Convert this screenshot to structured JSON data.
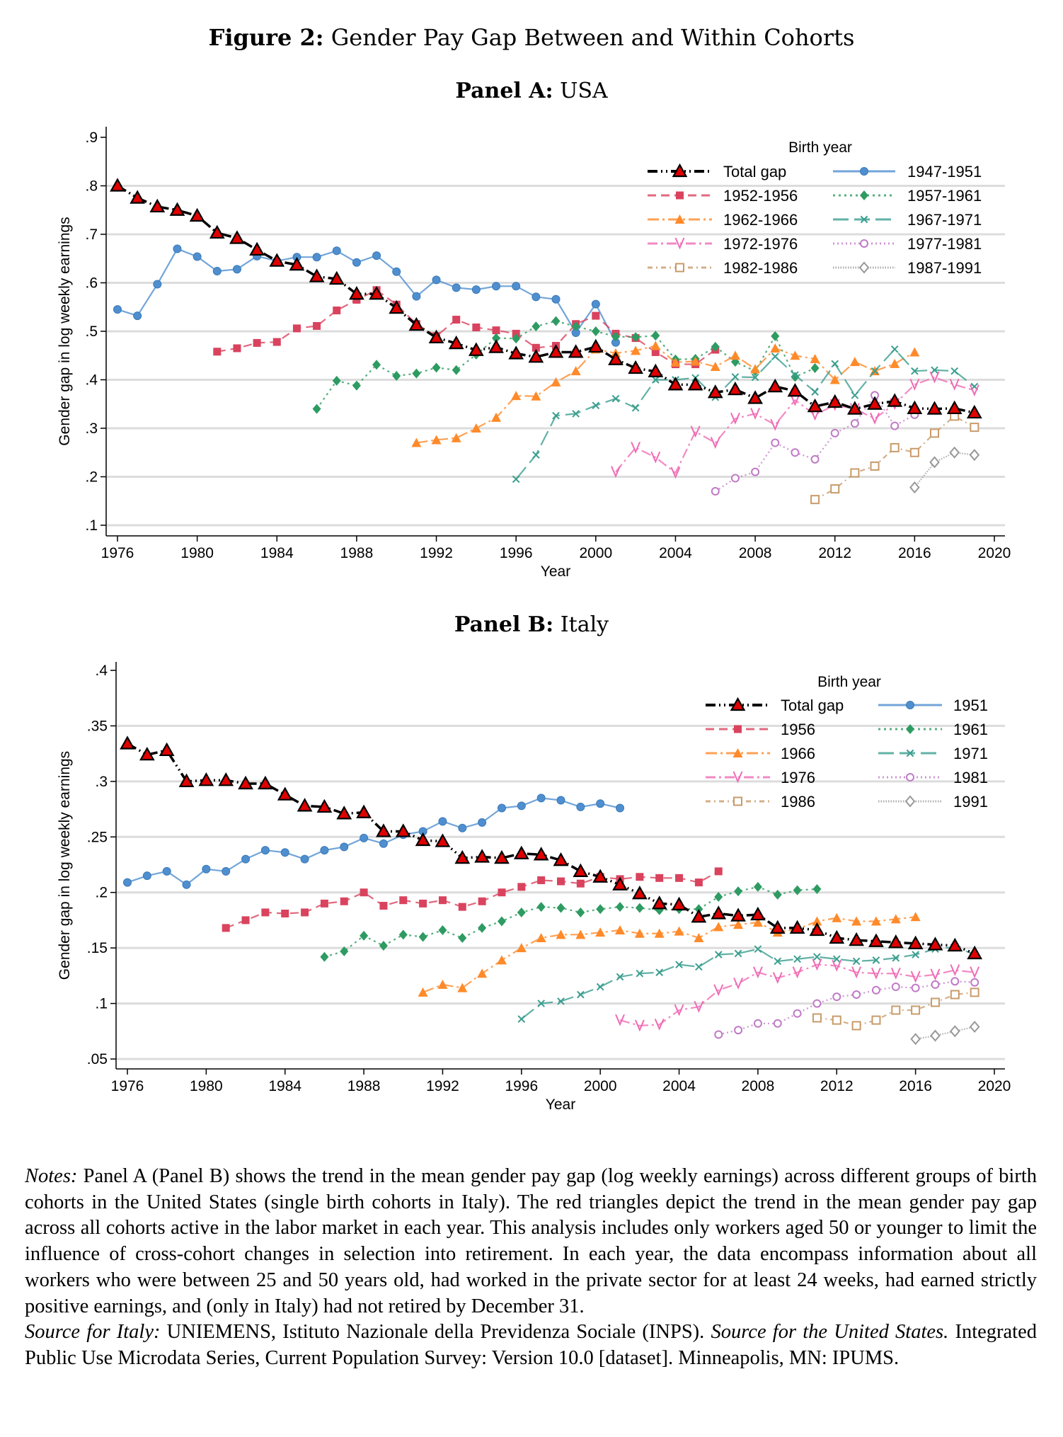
{
  "figure": {
    "label": "Figure 2:",
    "title": "Gender Pay Gap Between and Within Cohorts"
  },
  "panels": [
    {
      "label": "Panel A:",
      "title": "USA"
    },
    {
      "label": "Panel B:",
      "title": "Italy"
    }
  ],
  "notes": {
    "label": "Notes:",
    "body": " Panel A (Panel B) shows the trend in the mean gender pay gap (log weekly earnings) across different groups of birth cohorts in the United States (single birth cohorts in Italy). The red triangles depict the trend in the mean gender pay gap across all cohorts active in the labor market in each year. This analysis includes only workers aged 50 or younger to limit the influence of cross-cohort changes in selection into retirement. In each year, the data encompass information about all workers who were between 25 and 50 years old, had worked in the private sector for at least 24 weeks, had earned strictly positive earnings, and (only in Italy) had not retired by December 31.",
    "source_italy_label": "Source for Italy:",
    "source_italy": " UNIEMENS, Istituto Nazionale della Previdenza Sociale (INPS). ",
    "source_us_label": "Source for the United States.",
    "source_us": " Integrated Public Use Microdata Series, Current Population Survey: Version 10.0 [dataset]. Minneapolis, MN: IPUMS."
  },
  "chart_data": [
    {
      "type": "line",
      "title": "Panel A: USA",
      "xlabel": "Year",
      "ylabel": "Gender gap in log weekly earnings",
      "xlim": [
        1976,
        2020
      ],
      "xticks": [
        1976,
        1980,
        1984,
        1988,
        1992,
        1996,
        2000,
        2004,
        2008,
        2012,
        2016,
        2020
      ],
      "ylim": [
        0.1,
        0.9
      ],
      "yticks": [
        0.1,
        0.2,
        0.3,
        0.4,
        0.5,
        0.6,
        0.7,
        0.8,
        0.9
      ],
      "ytick_labels": [
        ".1",
        ".2",
        ".3",
        ".4",
        ".5",
        ".6",
        ".7",
        ".8",
        ".9"
      ],
      "grid": true,
      "legend_title": "Birth year",
      "legend_placement": "top-right",
      "series": [
        {
          "name": "Total gap",
          "color": "#000000",
          "marker": "filled-triangle-red",
          "start": 1976,
          "values": [
            0.8,
            0.775,
            0.757,
            0.75,
            0.738,
            0.703,
            0.692,
            0.668,
            0.645,
            0.637,
            0.613,
            0.608,
            0.577,
            0.577,
            0.548,
            0.513,
            0.487,
            0.475,
            0.461,
            0.467,
            0.454,
            0.447,
            0.457,
            0.457,
            0.468,
            0.442,
            0.424,
            0.417,
            0.39,
            0.39,
            0.374,
            0.38,
            0.362,
            0.386,
            0.377,
            0.345,
            0.354,
            0.34,
            0.35,
            0.356,
            0.341,
            0.34,
            0.341,
            0.332
          ]
        },
        {
          "name": "1947-1951",
          "color": "#4f8fcf",
          "marker": "circle",
          "start": 1976,
          "values": [
            0.545,
            0.532,
            0.597,
            0.67,
            0.654,
            0.624,
            0.628,
            0.655,
            0.645,
            0.653,
            0.653,
            0.666,
            0.642,
            0.656,
            0.623,
            0.572,
            0.606,
            0.59,
            0.586,
            0.593,
            0.593,
            0.571,
            0.566,
            0.497,
            0.556,
            0.477
          ]
        },
        {
          "name": "1952-1956",
          "color": "#d9435e",
          "marker": "square",
          "start": 1981,
          "values": [
            0.458,
            0.465,
            0.476,
            0.478,
            0.506,
            0.511,
            0.543,
            0.565,
            0.585,
            0.555,
            0.515,
            0.49,
            0.524,
            0.508,
            0.502,
            0.495,
            0.466,
            0.47,
            0.515,
            0.532,
            0.495,
            0.486,
            0.457,
            0.432,
            0.432,
            0.462
          ]
        },
        {
          "name": "1957-1961",
          "color": "#2e9b62",
          "marker": "diamond",
          "start": 1986,
          "values": [
            0.34,
            0.398,
            0.388,
            0.431,
            0.408,
            0.413,
            0.425,
            0.42,
            0.452,
            0.486,
            0.485,
            0.51,
            0.521,
            0.51,
            0.5,
            0.489,
            0.488,
            0.491,
            0.442,
            0.443,
            0.468,
            0.437,
            0.418,
            0.49,
            0.406,
            0.424
          ]
        },
        {
          "name": "1962-1966",
          "color": "#ff8a2a",
          "marker": "triangle",
          "start": 1991,
          "values": [
            0.27,
            0.276,
            0.28,
            0.3,
            0.322,
            0.367,
            0.366,
            0.395,
            0.418,
            0.463,
            0.455,
            0.46,
            0.47,
            0.436,
            0.438,
            0.427,
            0.45,
            0.422,
            0.465,
            0.45,
            0.443,
            0.4,
            0.437,
            0.418,
            0.433,
            0.457
          ]
        },
        {
          "name": "1967-1971",
          "color": "#3a9e8f",
          "marker": "x",
          "start": 1996,
          "values": [
            0.195,
            0.245,
            0.326,
            0.33,
            0.347,
            0.361,
            0.342,
            0.4,
            0.4,
            0.404,
            0.364,
            0.406,
            0.405,
            0.448,
            0.41,
            0.375,
            0.433,
            0.368,
            0.418,
            0.463,
            0.418,
            0.42,
            0.418,
            0.386
          ]
        },
        {
          "name": "1972-1976",
          "color": "#f06bb5",
          "marker": "v",
          "start": 2001,
          "values": [
            0.21,
            0.26,
            0.24,
            0.208,
            0.293,
            0.27,
            0.32,
            0.33,
            0.307,
            0.358,
            0.328,
            0.348,
            0.34,
            0.32,
            0.35,
            0.39,
            0.405,
            0.39,
            0.378
          ]
        },
        {
          "name": "1977-1981",
          "color": "#c07ac6",
          "marker": "hollow-circle",
          "start": 2006,
          "values": [
            0.17,
            0.197,
            0.21,
            0.27,
            0.25,
            0.236,
            0.29,
            0.31,
            0.368,
            0.305,
            0.328
          ]
        },
        {
          "name": "1982-1986",
          "color": "#c89b6a",
          "marker": "hollow-square",
          "start": 2011,
          "values": [
            0.153,
            0.175,
            0.208,
            0.222,
            0.26,
            0.25,
            0.29,
            0.325,
            0.302
          ]
        },
        {
          "name": "1987-1991",
          "color": "#999999",
          "marker": "hollow-diamond",
          "start": 2016,
          "values": [
            0.178,
            0.23,
            0.25,
            0.245
          ]
        }
      ]
    },
    {
      "type": "line",
      "title": "Panel B: Italy",
      "xlabel": "Year",
      "ylabel": "Gender gap in log weekly earnings",
      "xlim": [
        1976,
        2020
      ],
      "xticks": [
        1976,
        1980,
        1984,
        1988,
        1992,
        1996,
        2000,
        2004,
        2008,
        2012,
        2016,
        2020
      ],
      "ylim": [
        0.05,
        0.4
      ],
      "yticks": [
        0.05,
        0.1,
        0.15,
        0.2,
        0.25,
        0.3,
        0.35,
        0.4
      ],
      "ytick_labels": [
        ".05",
        ".1",
        ".15",
        ".2",
        ".25",
        ".3",
        ".35",
        ".4"
      ],
      "grid": true,
      "legend_title": "Birth year",
      "legend_placement": "top-right",
      "series": [
        {
          "name": "Total gap",
          "color": "#000000",
          "marker": "filled-triangle-red",
          "start": 1976,
          "values": [
            0.334,
            0.324,
            0.328,
            0.3,
            0.301,
            0.301,
            0.298,
            0.298,
            0.288,
            0.278,
            0.277,
            0.271,
            0.272,
            0.255,
            0.255,
            0.247,
            0.246,
            0.231,
            0.232,
            0.231,
            0.235,
            0.234,
            0.229,
            0.219,
            0.214,
            0.207,
            0.199,
            0.19,
            0.189,
            0.178,
            0.181,
            0.179,
            0.18,
            0.168,
            0.168,
            0.166,
            0.159,
            0.157,
            0.156,
            0.155,
            0.154,
            0.153,
            0.152,
            0.145
          ]
        },
        {
          "name": "1951",
          "color": "#4f8fcf",
          "marker": "circle",
          "start": 1976,
          "values": [
            0.209,
            0.215,
            0.219,
            0.207,
            0.221,
            0.219,
            0.23,
            0.238,
            0.236,
            0.23,
            0.238,
            0.241,
            0.249,
            0.244,
            0.252,
            0.255,
            0.264,
            0.258,
            0.263,
            0.276,
            0.278,
            0.285,
            0.283,
            0.277,
            0.28,
            0.276
          ]
        },
        {
          "name": "1956",
          "color": "#d9435e",
          "marker": "square",
          "start": 1981,
          "values": [
            0.168,
            0.175,
            0.182,
            0.181,
            0.182,
            0.19,
            0.192,
            0.2,
            0.188,
            0.193,
            0.19,
            0.193,
            0.187,
            0.192,
            0.2,
            0.205,
            0.211,
            0.21,
            0.208,
            0.214,
            0.212,
            0.214,
            0.213,
            0.213,
            0.209,
            0.219
          ]
        },
        {
          "name": "1961",
          "color": "#2e9b62",
          "marker": "diamond",
          "start": 1986,
          "values": [
            0.142,
            0.147,
            0.161,
            0.152,
            0.162,
            0.16,
            0.166,
            0.159,
            0.168,
            0.174,
            0.182,
            0.187,
            0.186,
            0.182,
            0.185,
            0.187,
            0.186,
            0.184,
            0.185,
            0.185,
            0.196,
            0.201,
            0.205,
            0.198,
            0.202,
            0.203
          ]
        },
        {
          "name": "1966",
          "color": "#ff8a2a",
          "marker": "triangle",
          "start": 1991,
          "values": [
            0.11,
            0.117,
            0.114,
            0.127,
            0.139,
            0.15,
            0.159,
            0.162,
            0.162,
            0.164,
            0.166,
            0.163,
            0.163,
            0.165,
            0.159,
            0.169,
            0.171,
            0.173,
            0.164,
            0.167,
            0.174,
            0.177,
            0.174,
            0.174,
            0.176,
            0.178
          ]
        },
        {
          "name": "1971",
          "color": "#3a9e8f",
          "marker": "x",
          "start": 1996,
          "values": [
            0.086,
            0.1,
            0.102,
            0.108,
            0.115,
            0.124,
            0.127,
            0.128,
            0.135,
            0.133,
            0.144,
            0.145,
            0.149,
            0.138,
            0.14,
            0.142,
            0.14,
            0.138,
            0.139,
            0.141,
            0.144,
            0.149,
            0.151,
            0.144
          ]
        },
        {
          "name": "1976",
          "color": "#f06bb5",
          "marker": "v",
          "start": 2001,
          "values": [
            0.085,
            0.08,
            0.081,
            0.094,
            0.097,
            0.112,
            0.118,
            0.128,
            0.123,
            0.128,
            0.135,
            0.134,
            0.128,
            0.127,
            0.127,
            0.124,
            0.126,
            0.13,
            0.128
          ]
        },
        {
          "name": "1981",
          "color": "#c07ac6",
          "marker": "hollow-circle",
          "start": 2006,
          "values": [
            0.072,
            0.076,
            0.082,
            0.082,
            0.091,
            0.1,
            0.106,
            0.108,
            0.112,
            0.115,
            0.114,
            0.117,
            0.12,
            0.119
          ]
        },
        {
          "name": "1986",
          "color": "#c89b6a",
          "marker": "hollow-square",
          "start": 2011,
          "values": [
            0.087,
            0.085,
            0.08,
            0.085,
            0.094,
            0.094,
            0.101,
            0.108,
            0.11
          ]
        },
        {
          "name": "1991",
          "color": "#999999",
          "marker": "hollow-diamond",
          "start": 2016,
          "values": [
            0.068,
            0.071,
            0.075,
            0.079
          ]
        }
      ]
    }
  ]
}
